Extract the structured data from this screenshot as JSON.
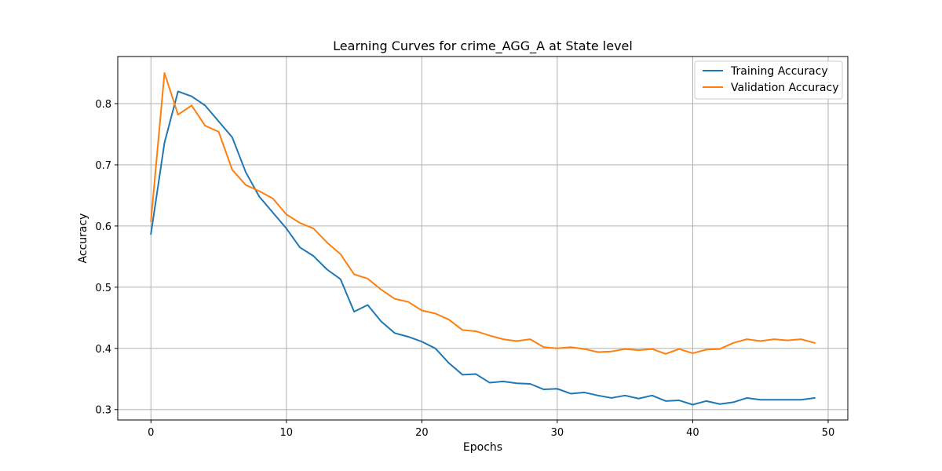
{
  "chart_data": {
    "type": "line",
    "title": "Learning Curves for crime_AGG_A at State level",
    "xlabel": "Epochs",
    "ylabel": "Accuracy",
    "xlim": [
      -2.45,
      51.45
    ],
    "ylim": [
      0.283,
      0.877
    ],
    "xticks": [
      0,
      10,
      20,
      30,
      40,
      50
    ],
    "yticks": [
      0.3,
      0.4,
      0.5,
      0.6,
      0.7,
      0.8
    ],
    "ytick_labels": [
      "0.3",
      "0.4",
      "0.5",
      "0.6",
      "0.7",
      "0.8"
    ],
    "grid": true,
    "legend_position": "top-right",
    "x": [
      0,
      1,
      2,
      3,
      4,
      5,
      6,
      7,
      8,
      9,
      10,
      11,
      12,
      13,
      14,
      15,
      16,
      17,
      18,
      19,
      20,
      21,
      22,
      23,
      24,
      25,
      26,
      27,
      28,
      29,
      30,
      31,
      32,
      33,
      34,
      35,
      36,
      37,
      38,
      39,
      40,
      41,
      42,
      43,
      44,
      45,
      46,
      47,
      48,
      49
    ],
    "series": [
      {
        "name": "Training Accuracy",
        "color": "#1f77b4",
        "values": [
          0.587,
          0.736,
          0.82,
          0.812,
          0.797,
          0.771,
          0.745,
          0.688,
          0.648,
          0.622,
          0.596,
          0.565,
          0.551,
          0.529,
          0.513,
          0.46,
          0.471,
          0.444,
          0.425,
          0.419,
          0.411,
          0.4,
          0.376,
          0.357,
          0.358,
          0.344,
          0.346,
          0.343,
          0.342,
          0.333,
          0.334,
          0.326,
          0.328,
          0.323,
          0.319,
          0.323,
          0.318,
          0.323,
          0.314,
          0.315,
          0.308,
          0.314,
          0.309,
          0.312,
          0.319,
          0.316,
          0.316,
          0.316,
          0.316,
          0.319
        ]
      },
      {
        "name": "Validation Accuracy",
        "color": "#ff7f0e",
        "values": [
          0.608,
          0.85,
          0.782,
          0.797,
          0.764,
          0.754,
          0.692,
          0.667,
          0.657,
          0.645,
          0.619,
          0.605,
          0.596,
          0.573,
          0.554,
          0.521,
          0.514,
          0.496,
          0.481,
          0.476,
          0.462,
          0.457,
          0.447,
          0.43,
          0.428,
          0.421,
          0.415,
          0.412,
          0.415,
          0.402,
          0.4,
          0.402,
          0.399,
          0.394,
          0.395,
          0.399,
          0.397,
          0.399,
          0.391,
          0.399,
          0.392,
          0.398,
          0.399,
          0.409,
          0.415,
          0.412,
          0.415,
          0.413,
          0.415,
          0.409
        ]
      }
    ]
  }
}
